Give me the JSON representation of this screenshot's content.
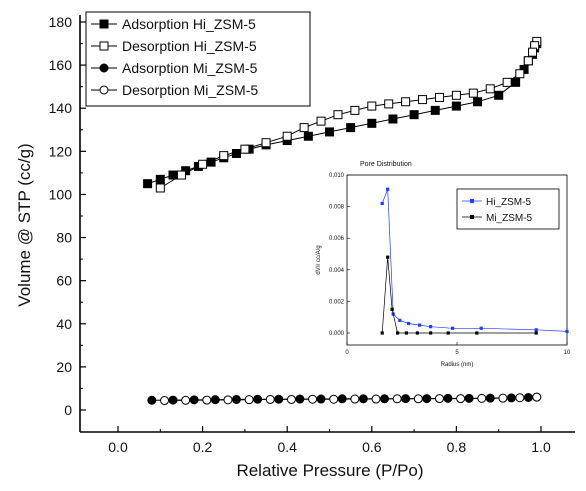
{
  "chart_data": [
    {
      "type": "scatter",
      "xlabel": "Relative Pressure (P/Po)",
      "ylabel": "Volume @ STP (cc/g)",
      "xlim": [
        -0.15,
        1.15
      ],
      "ylim": [
        -10,
        180
      ],
      "xticks": [
        "0.0",
        "0.2",
        "0.4",
        "0.6",
        "0.8",
        "1.0"
      ],
      "yticks": [
        "0",
        "20",
        "40",
        "60",
        "80",
        "100",
        "120",
        "140",
        "160",
        "180"
      ],
      "legend_position": "top-left",
      "series": [
        {
          "name": "Adsorption Hi_ZSM-5",
          "marker": "square-filled",
          "color": "#000000",
          "x": [
            0.07,
            0.1,
            0.13,
            0.16,
            0.19,
            0.22,
            0.25,
            0.28,
            0.31,
            0.35,
            0.4,
            0.45,
            0.5,
            0.55,
            0.6,
            0.65,
            0.7,
            0.75,
            0.8,
            0.85,
            0.9,
            0.94,
            0.96,
            0.97,
            0.98,
            0.985,
            0.99
          ],
          "y": [
            105,
            107,
            109,
            111,
            113,
            115,
            117,
            119,
            121,
            123,
            125,
            127,
            129,
            131,
            133,
            135,
            137,
            139,
            141,
            143,
            146,
            152,
            158,
            162,
            165,
            168,
            170
          ]
        },
        {
          "name": "Desorption Hi_ZSM-5",
          "marker": "square-open",
          "color": "#000000",
          "x": [
            0.99,
            0.985,
            0.98,
            0.97,
            0.95,
            0.92,
            0.88,
            0.84,
            0.8,
            0.76,
            0.72,
            0.68,
            0.64,
            0.6,
            0.56,
            0.52,
            0.48,
            0.44,
            0.4,
            0.35,
            0.3,
            0.25,
            0.2,
            0.15,
            0.1
          ],
          "y": [
            171,
            169,
            166,
            162,
            156,
            152,
            149,
            147,
            146,
            145,
            144,
            143,
            142,
            141,
            139,
            137,
            134,
            131,
            127,
            124,
            121,
            118,
            114,
            109,
            103
          ]
        },
        {
          "name": "Adsorption Mi_ZSM-5",
          "marker": "circle-filled",
          "color": "#000000",
          "x": [
            0.08,
            0.13,
            0.18,
            0.23,
            0.28,
            0.33,
            0.38,
            0.43,
            0.48,
            0.53,
            0.58,
            0.63,
            0.68,
            0.73,
            0.78,
            0.83,
            0.88,
            0.93,
            0.97,
            0.99
          ],
          "y": [
            4.5,
            4.6,
            4.7,
            4.8,
            4.9,
            5.0,
            5.0,
            5.1,
            5.1,
            5.2,
            5.2,
            5.2,
            5.3,
            5.3,
            5.4,
            5.4,
            5.5,
            5.6,
            5.8,
            6.0
          ]
        },
        {
          "name": "Desorption Mi_ZSM-5",
          "marker": "circle-open",
          "color": "#000000",
          "x": [
            0.99,
            0.95,
            0.91,
            0.86,
            0.81,
            0.76,
            0.71,
            0.66,
            0.61,
            0.56,
            0.51,
            0.46,
            0.41,
            0.36,
            0.31,
            0.26,
            0.21,
            0.16,
            0.11
          ],
          "y": [
            6.0,
            5.7,
            5.5,
            5.4,
            5.3,
            5.3,
            5.2,
            5.2,
            5.1,
            5.1,
            5.0,
            5.0,
            4.9,
            4.9,
            4.8,
            4.7,
            4.6,
            4.5,
            4.4
          ]
        }
      ]
    },
    {
      "type": "line",
      "title": "Pore Distribution",
      "xlabel": "Radius (nm)",
      "ylabel": "dV/r cc/A/g",
      "xlim": [
        0,
        10
      ],
      "ylim": [
        -0.001,
        0.01
      ],
      "xticks": [
        "0",
        "5",
        "10"
      ],
      "yticks": [
        "0.000",
        "0.002",
        "0.004",
        "0.006",
        "0.008",
        "0.010"
      ],
      "legend_position": "right",
      "series": [
        {
          "name": "Hi_ZSM-5",
          "color": "#1f3dff",
          "x": [
            1.6,
            1.85,
            2.1,
            2.4,
            2.8,
            3.3,
            3.8,
            4.8,
            6.1,
            8.6,
            10.0
          ],
          "y": [
            0.0082,
            0.0091,
            0.0012,
            0.0008,
            0.0006,
            0.0005,
            0.0004,
            0.0003,
            0.0003,
            0.0002,
            0.0001
          ]
        },
        {
          "name": "Mi_ZSM-5",
          "color": "#000000",
          "x": [
            1.6,
            1.85,
            2.05,
            2.3,
            2.7,
            3.2,
            3.8,
            4.6,
            5.9,
            8.6
          ],
          "y": [
            0.0,
            0.0048,
            0.0015,
            0.0,
            0.0,
            0.0,
            0.0,
            0.0,
            0.0,
            0.0
          ]
        }
      ]
    }
  ]
}
